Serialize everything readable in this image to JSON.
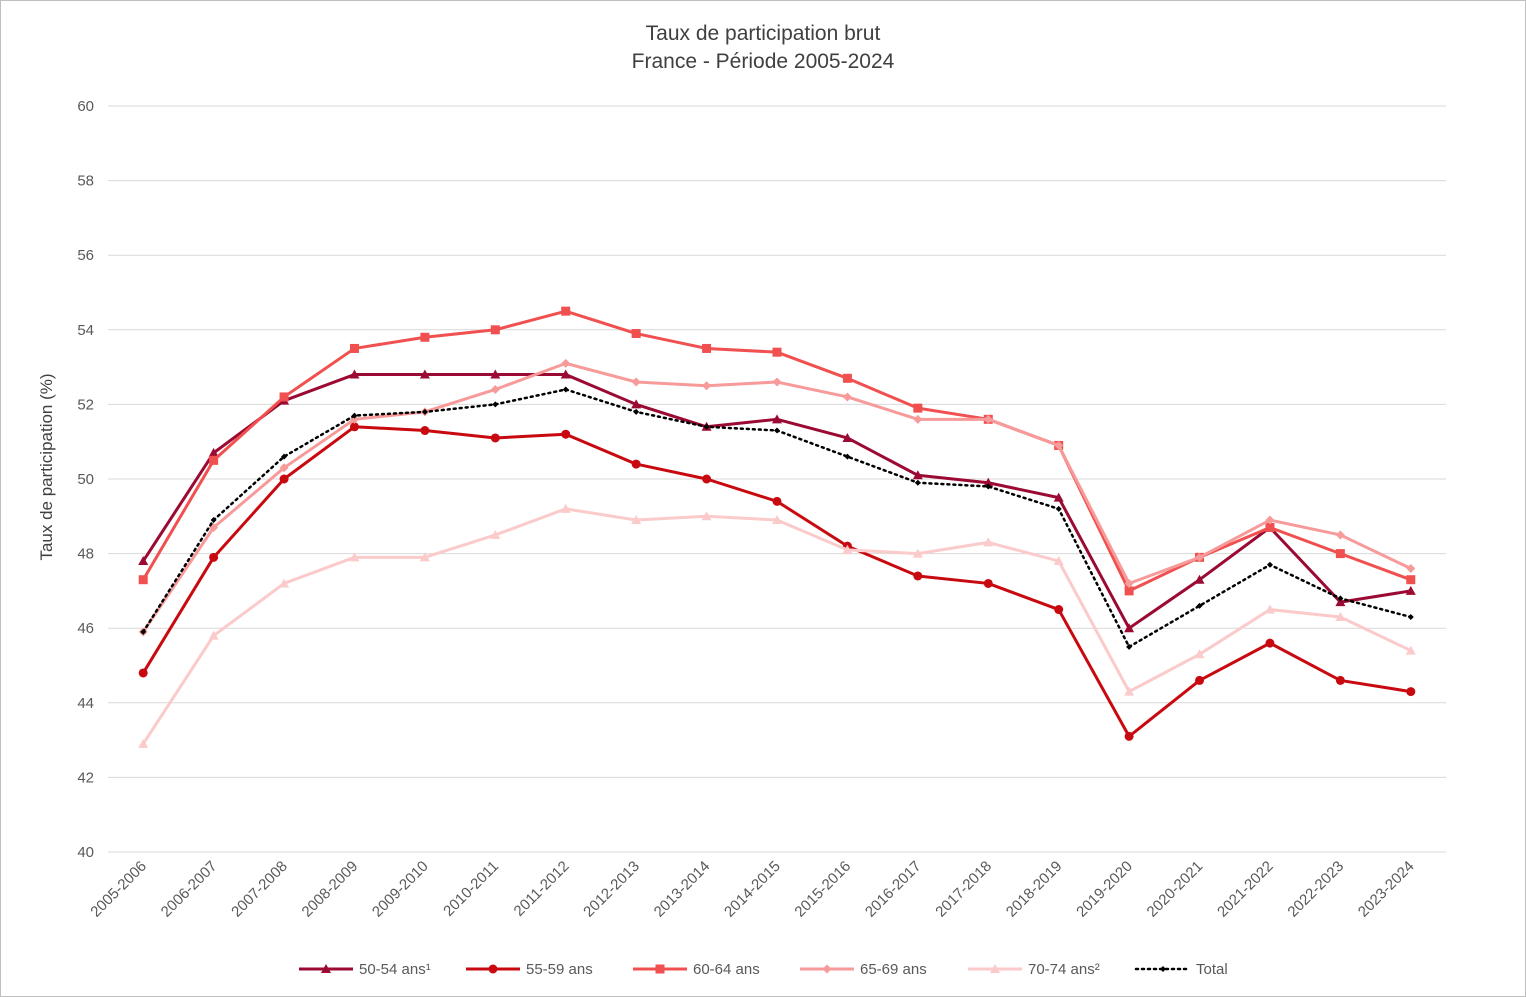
{
  "chart_data": {
    "type": "line",
    "title": "Taux de participation brut",
    "subtitle": "France - Période 2005-2024",
    "xlabel": "",
    "ylabel": "Taux de participation (%)",
    "ylim": [
      40,
      60
    ],
    "yticks": [
      40,
      42,
      44,
      46,
      48,
      50,
      52,
      54,
      56,
      58,
      60
    ],
    "grid": "horizontal",
    "legend_position": "bottom",
    "categories": [
      "2005-2006",
      "2006-2007",
      "2007-2008",
      "2008-2009",
      "2009-2010",
      "2010-2011",
      "2011-2012",
      "2012-2013",
      "2013-2014",
      "2014-2015",
      "2015-2016",
      "2016-2017",
      "2017-2018",
      "2018-2019",
      "2019-2020",
      "2020-2021",
      "2021-2022",
      "2022-2023",
      "2023-2024"
    ],
    "series": [
      {
        "name": "50-54 ans¹",
        "color": "#9b0a33",
        "marker": "triangle",
        "dash": "solid",
        "values": [
          47.8,
          50.7,
          52.1,
          52.8,
          52.8,
          52.8,
          52.8,
          52.0,
          51.4,
          51.6,
          51.1,
          50.1,
          49.9,
          49.5,
          46.0,
          47.3,
          48.7,
          46.7,
          47.0
        ]
      },
      {
        "name": "55-59 ans",
        "color": "#c80a10",
        "marker": "circle",
        "dash": "solid",
        "values": [
          44.8,
          47.9,
          50.0,
          51.4,
          51.3,
          51.1,
          51.2,
          50.4,
          50.0,
          49.4,
          48.2,
          47.4,
          47.2,
          46.5,
          43.1,
          44.6,
          45.6,
          44.6,
          44.3
        ]
      },
      {
        "name": "60-64 ans",
        "color": "#f0504f",
        "marker": "square",
        "dash": "solid",
        "values": [
          47.3,
          50.5,
          52.2,
          53.5,
          53.8,
          54.0,
          54.5,
          53.9,
          53.5,
          53.4,
          52.7,
          51.9,
          51.6,
          50.9,
          47.0,
          47.9,
          48.7,
          48.0,
          47.3
        ]
      },
      {
        "name": "65-69 ans",
        "color": "#f79a9a",
        "marker": "diamond",
        "dash": "solid",
        "values": [
          45.9,
          48.7,
          50.3,
          51.6,
          51.8,
          52.4,
          53.1,
          52.6,
          52.5,
          52.6,
          52.2,
          51.6,
          51.6,
          50.9,
          47.2,
          47.9,
          48.9,
          48.5,
          47.6
        ]
      },
      {
        "name": "70-74 ans²",
        "color": "#fbcaca",
        "marker": "triangle",
        "dash": "solid",
        "values": [
          42.9,
          45.8,
          47.2,
          47.9,
          47.9,
          48.5,
          49.2,
          48.9,
          49.0,
          48.9,
          48.1,
          48.0,
          48.3,
          47.8,
          44.3,
          45.3,
          46.5,
          46.3,
          45.4
        ]
      },
      {
        "name": "Total",
        "color": "#000000",
        "marker": "diamond",
        "dash": "dotted",
        "values": [
          45.9,
          48.9,
          50.6,
          51.7,
          51.8,
          52.0,
          52.4,
          51.8,
          51.4,
          51.3,
          50.6,
          49.9,
          49.8,
          49.2,
          45.5,
          46.6,
          47.7,
          46.8,
          46.3
        ]
      }
    ]
  }
}
